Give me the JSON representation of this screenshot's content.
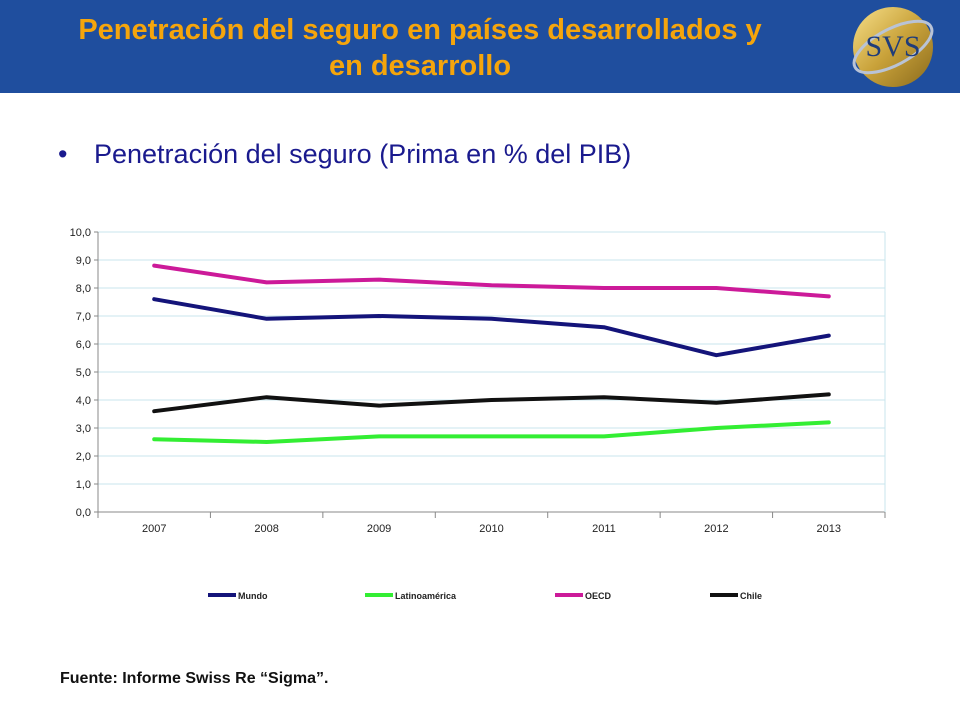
{
  "header": {
    "title_line1": "Penetración del seguro en países desarrollados y",
    "title_line2": "en desarrollo",
    "logo_text": "SVS",
    "bg_color": "#1f4e9e",
    "title_color": "#f5a50c"
  },
  "subtitle": {
    "bullet": "•",
    "text": "Penetración del seguro (Prima en % del PIB)"
  },
  "chart_data": {
    "type": "line",
    "title": "",
    "xlabel": "",
    "ylabel": "",
    "categories": [
      "2007",
      "2008",
      "2009",
      "2010",
      "2011",
      "2012",
      "2013"
    ],
    "ylim": [
      0,
      10
    ],
    "yticks": [
      "0,0",
      "1,0",
      "2,0",
      "3,0",
      "4,0",
      "5,0",
      "6,0",
      "7,0",
      "8,0",
      "9,0",
      "10,0"
    ],
    "grid": true,
    "legend_position": "bottom",
    "series": [
      {
        "name": "Mundo",
        "color": "#14147a",
        "values": [
          7.6,
          6.9,
          7.0,
          6.9,
          6.6,
          5.6,
          6.3
        ]
      },
      {
        "name": "Latinoamérica",
        "color": "#33ee33",
        "values": [
          2.6,
          2.5,
          2.7,
          2.7,
          2.7,
          3.0,
          3.2
        ]
      },
      {
        "name": "OECD",
        "color": "#cc1a99",
        "values": [
          8.8,
          8.2,
          8.3,
          8.1,
          8.0,
          8.0,
          7.7
        ]
      },
      {
        "name": "Chile",
        "color": "#111111",
        "values": [
          3.6,
          4.1,
          3.8,
          4.0,
          4.1,
          3.9,
          4.2
        ]
      }
    ]
  },
  "footer": {
    "source": "Fuente: Informe Swiss Re “Sigma”."
  }
}
